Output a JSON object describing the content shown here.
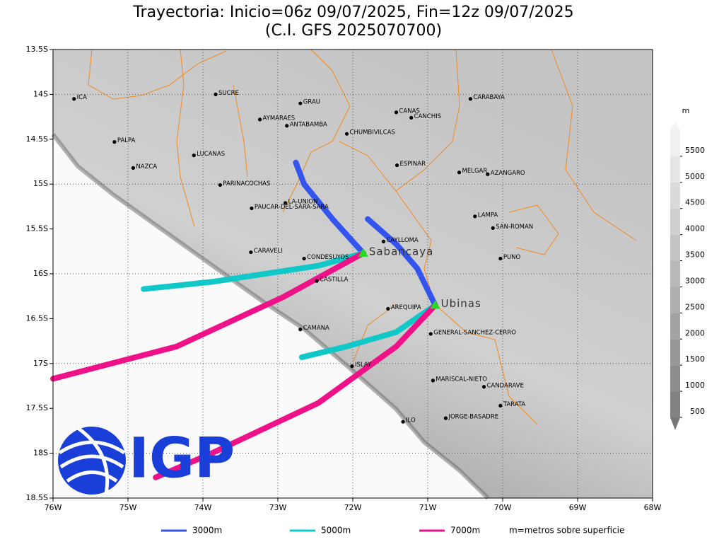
{
  "chart_data": {
    "type": "map",
    "title": "Trayectoria: Inicio=06z 09/07/2025, Fin=12z 09/07/2025",
    "subtitle": "(C.I. GFS 2025070700)",
    "xlim": [
      -76,
      -68
    ],
    "ylim": [
      -18.5,
      -13.5
    ],
    "xticks": [
      {
        "value": -76,
        "label": "76W"
      },
      {
        "value": -75,
        "label": "75W"
      },
      {
        "value": -74,
        "label": "74W"
      },
      {
        "value": -73,
        "label": "73W"
      },
      {
        "value": -72,
        "label": "72W"
      },
      {
        "value": -71,
        "label": "71W"
      },
      {
        "value": -70,
        "label": "70W"
      },
      {
        "value": -69,
        "label": "69W"
      },
      {
        "value": -68,
        "label": "68W"
      }
    ],
    "yticks": [
      {
        "value": -13.5,
        "label": "13.5S"
      },
      {
        "value": -14,
        "label": "14S"
      },
      {
        "value": -14.5,
        "label": "14.5S"
      },
      {
        "value": -15,
        "label": "15S"
      },
      {
        "value": -15.5,
        "label": "15.5S"
      },
      {
        "value": -16,
        "label": "16S"
      },
      {
        "value": -16.5,
        "label": "16.5S"
      },
      {
        "value": -17,
        "label": "17S"
      },
      {
        "value": -17.5,
        "label": "17.5S"
      },
      {
        "value": -18,
        "label": "18S"
      },
      {
        "value": -18.5,
        "label": "18.5S"
      }
    ],
    "grid": true,
    "places": [
      {
        "name": "ICA",
        "lon": -75.72,
        "lat": -14.05
      },
      {
        "name": "SUCRE",
        "lon": -73.83,
        "lat": -14.0
      },
      {
        "name": "GRAU",
        "lon": -72.7,
        "lat": -14.1
      },
      {
        "name": "AYMARAES",
        "lon": -73.24,
        "lat": -14.28
      },
      {
        "name": "ANTABAMBA",
        "lon": -72.88,
        "lat": -14.35
      },
      {
        "name": "CANAS",
        "lon": -71.42,
        "lat": -14.2
      },
      {
        "name": "CANCHIS",
        "lon": -71.22,
        "lat": -14.26
      },
      {
        "name": "CHUMBIVILCAS",
        "lon": -72.08,
        "lat": -14.44
      },
      {
        "name": "CARABAYA",
        "lon": -70.43,
        "lat": -14.05
      },
      {
        "name": "PALPA",
        "lon": -75.18,
        "lat": -14.53
      },
      {
        "name": "LUCANAS",
        "lon": -74.12,
        "lat": -14.68
      },
      {
        "name": "NAZCA",
        "lon": -74.93,
        "lat": -14.82
      },
      {
        "name": "ESPINAR",
        "lon": -71.41,
        "lat": -14.79
      },
      {
        "name": "MELGAR",
        "lon": -70.58,
        "lat": -14.87
      },
      {
        "name": "AZANGARO",
        "lon": -70.2,
        "lat": -14.89
      },
      {
        "name": "PARINACOCHAS",
        "lon": -73.77,
        "lat": -15.01
      },
      {
        "name": "LA-UNION",
        "lon": -72.9,
        "lat": -15.21
      },
      {
        "name": "PAUCAR-DEL-SARA-SARA",
        "lon": -73.35,
        "lat": -15.27
      },
      {
        "name": "LAMPA",
        "lon": -70.37,
        "lat": -15.36
      },
      {
        "name": "SAN-ROMAN",
        "lon": -70.13,
        "lat": -15.49
      },
      {
        "name": "CAYLLOMA",
        "lon": -71.59,
        "lat": -15.64
      },
      {
        "name": "CARAVELI",
        "lon": -73.36,
        "lat": -15.76
      },
      {
        "name": "CONDESUYOS",
        "lon": -72.65,
        "lat": -15.83
      },
      {
        "name": "PUNO",
        "lon": -70.03,
        "lat": -15.83
      },
      {
        "name": "CASTILLA",
        "lon": -72.48,
        "lat": -16.08
      },
      {
        "name": "AREQUIPA",
        "lon": -71.53,
        "lat": -16.39
      },
      {
        "name": "CAMANA",
        "lon": -72.7,
        "lat": -16.62
      },
      {
        "name": "GENERAL-SANCHEZ-CERRO",
        "lon": -70.96,
        "lat": -16.67
      },
      {
        "name": "ISLAY",
        "lon": -72.01,
        "lat": -17.03
      },
      {
        "name": "MARISCAL-NIETO",
        "lon": -70.93,
        "lat": -17.19
      },
      {
        "name": "CANDARAVE",
        "lon": -70.25,
        "lat": -17.26
      },
      {
        "name": "TARATA",
        "lon": -70.03,
        "lat": -17.47
      },
      {
        "name": "ILO",
        "lon": -71.33,
        "lat": -17.65
      },
      {
        "name": "JORGE-BASADRE",
        "lon": -70.76,
        "lat": -17.61
      }
    ],
    "volcanoes": [
      {
        "name": "Sabancaya",
        "lon": -71.86,
        "lat": -15.77
      },
      {
        "name": "Ubinas",
        "lon": -70.9,
        "lat": -16.35
      }
    ],
    "series": [
      {
        "name": "3000m",
        "color": "#3355ee",
        "paths": [
          {
            "x": [
              -71.86,
              -72.27,
              -72.65,
              -72.76
            ],
            "y": [
              -15.77,
              -15.39,
              -15.0,
              -14.76
            ]
          },
          {
            "x": [
              -70.9,
              -71.14,
              -71.42,
              -71.8
            ],
            "y": [
              -16.35,
              -15.94,
              -15.67,
              -15.39
            ]
          }
        ]
      },
      {
        "name": "5000m",
        "color": "#11c8c8",
        "paths": [
          {
            "x": [
              -71.86,
              -72.46,
              -73.88,
              -74.79
            ],
            "y": [
              -15.77,
              -15.91,
              -16.09,
              -16.17
            ]
          },
          {
            "x": [
              -70.9,
              -71.42,
              -72.08,
              -72.68
            ],
            "y": [
              -16.35,
              -16.65,
              -16.81,
              -16.93
            ]
          }
        ]
      },
      {
        "name": "7000m",
        "color": "#ee1188",
        "paths": [
          {
            "x": [
              -71.86,
              -72.93,
              -74.35,
              -76
            ],
            "y": [
              -15.77,
              -16.26,
              -16.81,
              -17.17
            ]
          },
          {
            "x": [
              -70.9,
              -71.42,
              -72.46,
              -73.88,
              -74.63
            ],
            "y": [
              -16.35,
              -16.81,
              -17.44,
              -18.0,
              -18.27
            ]
          }
        ]
      }
    ],
    "colorbar": {
      "unit": "m",
      "ticks": [
        500,
        1000,
        1500,
        2000,
        2500,
        3000,
        3500,
        4000,
        4500,
        5000,
        5500
      ]
    },
    "note": "m=metros sobre superficie",
    "logo": "IGP"
  }
}
